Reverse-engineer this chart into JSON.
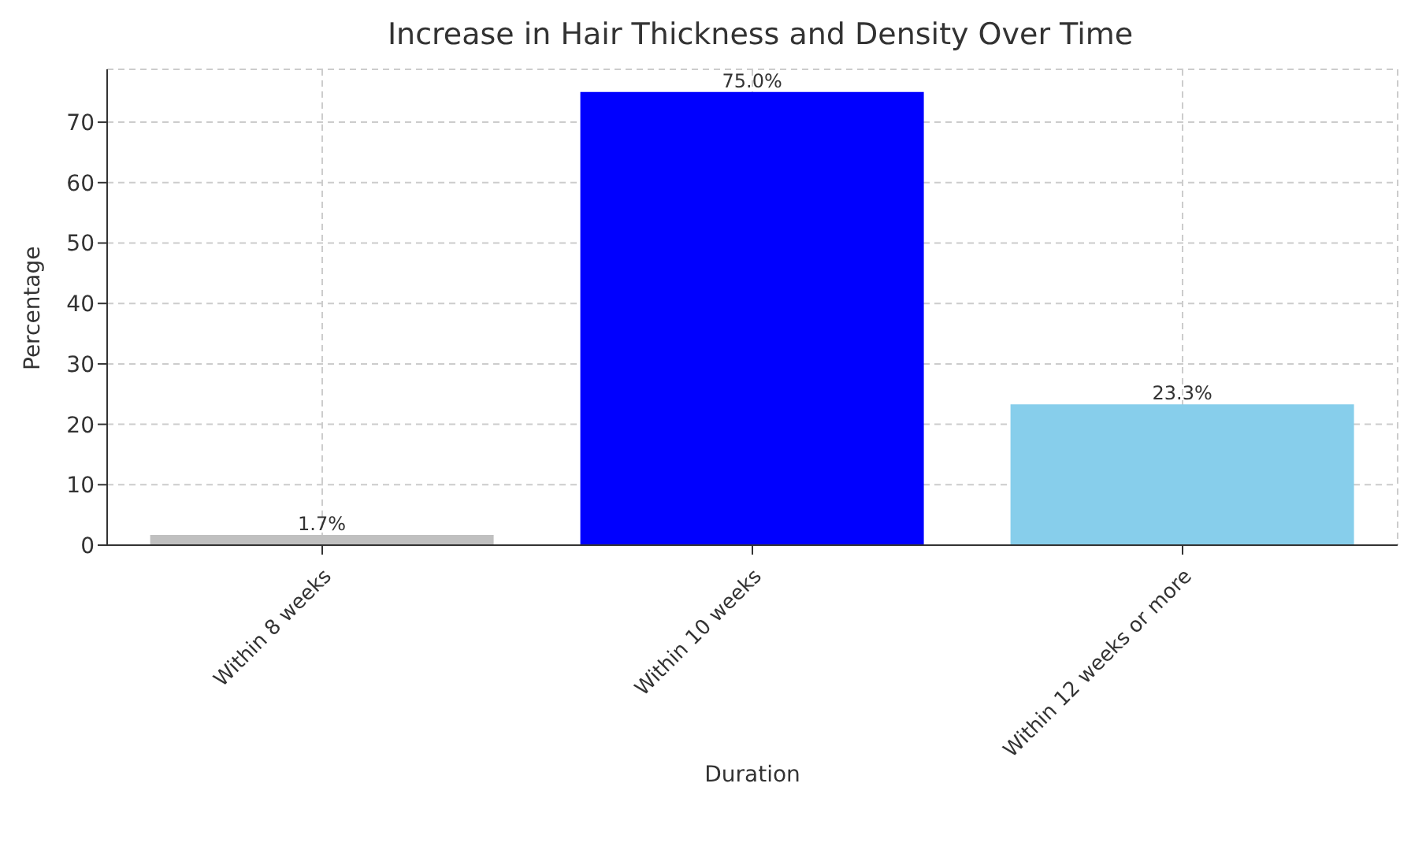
{
  "chart_data": {
    "type": "bar",
    "title": "Increase in Hair Thickness and Density Over Time",
    "xlabel": "Duration",
    "ylabel": "Percentage",
    "categories": [
      "Within 8 weeks",
      "Within 10 weeks",
      "Within 12 weeks or more"
    ],
    "values": [
      1.7,
      75.0,
      23.3
    ],
    "colors": [
      "#c0c0c0",
      "#0000ff",
      "#87ceeb"
    ],
    "value_labels": [
      "1.7%",
      "75.0%",
      "23.3%"
    ],
    "ylim": [
      0,
      78.75
    ],
    "yticks": [
      0,
      10,
      20,
      30,
      40,
      50,
      60,
      70
    ],
    "grid": true
  }
}
